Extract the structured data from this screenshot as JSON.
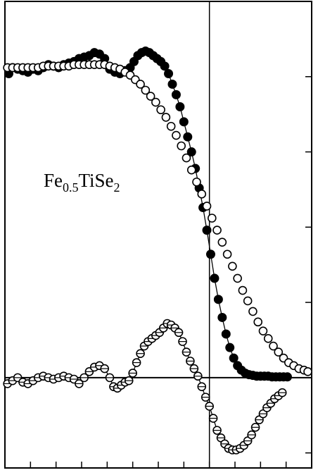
{
  "chart_data": {
    "type": "scatter",
    "annotation": {
      "base": "Fe",
      "sub1": "0.5",
      "mid": "TiSe",
      "sub2": "2"
    },
    "xlim": [
      0,
      12
    ],
    "ylim": [
      -0.6,
      2.5
    ],
    "x_ticks": [
      1,
      2,
      3,
      4,
      5,
      6,
      7,
      8,
      9,
      10,
      11
    ],
    "y_ticks": [
      -0.5,
      0,
      0.5,
      1,
      1.5,
      2
    ],
    "reference_lines": {
      "x": 8,
      "y": 0
    },
    "series": [
      {
        "marker": "filled-circle",
        "connected": true,
        "points": [
          [
            0.15,
            2.02
          ],
          [
            0.3,
            2.06
          ],
          [
            0.5,
            2.05
          ],
          [
            0.7,
            2.04
          ],
          [
            0.9,
            2.03
          ],
          [
            1.1,
            2.05
          ],
          [
            1.3,
            2.04
          ],
          [
            1.5,
            2.06
          ],
          [
            1.7,
            2.08
          ],
          [
            1.9,
            2.07
          ],
          [
            2.1,
            2.06
          ],
          [
            2.3,
            2.08
          ],
          [
            2.5,
            2.09
          ],
          [
            2.7,
            2.1
          ],
          [
            2.9,
            2.12
          ],
          [
            3.1,
            2.13
          ],
          [
            3.3,
            2.14
          ],
          [
            3.5,
            2.16
          ],
          [
            3.7,
            2.15
          ],
          [
            3.9,
            2.12
          ],
          [
            4.1,
            2.05
          ],
          [
            4.3,
            2.03
          ],
          [
            4.5,
            2.02
          ],
          [
            4.7,
            2.04
          ],
          [
            4.9,
            2.06
          ],
          [
            5.05,
            2.1
          ],
          [
            5.2,
            2.14
          ],
          [
            5.35,
            2.16
          ],
          [
            5.5,
            2.17
          ],
          [
            5.65,
            2.16
          ],
          [
            5.8,
            2.14
          ],
          [
            5.95,
            2.12
          ],
          [
            6.1,
            2.1
          ],
          [
            6.25,
            2.07
          ],
          [
            6.4,
            2.02
          ],
          [
            6.55,
            1.95
          ],
          [
            6.7,
            1.88
          ],
          [
            6.85,
            1.8
          ],
          [
            7.0,
            1.7
          ],
          [
            7.15,
            1.6
          ],
          [
            7.3,
            1.5
          ],
          [
            7.45,
            1.39
          ],
          [
            7.6,
            1.26
          ],
          [
            7.75,
            1.13
          ],
          [
            7.9,
            0.98
          ],
          [
            8.05,
            0.82
          ],
          [
            8.2,
            0.66
          ],
          [
            8.35,
            0.52
          ],
          [
            8.5,
            0.4
          ],
          [
            8.65,
            0.29
          ],
          [
            8.8,
            0.2
          ],
          [
            8.95,
            0.13
          ],
          [
            9.1,
            0.08
          ],
          [
            9.25,
            0.05
          ],
          [
            9.4,
            0.03
          ],
          [
            9.55,
            0.02
          ],
          [
            9.7,
            0.015
          ],
          [
            9.85,
            0.01
          ],
          [
            10.0,
            0.01
          ],
          [
            10.15,
            0.01
          ],
          [
            10.3,
            0.01
          ],
          [
            10.45,
            0.005
          ],
          [
            10.6,
            0.005
          ],
          [
            10.75,
            0.005
          ],
          [
            10.9,
            0.005
          ],
          [
            11.05,
            0.005
          ]
        ]
      },
      {
        "marker": "open-circle",
        "connected": false,
        "points": [
          [
            0.1,
            2.06
          ],
          [
            0.3,
            2.06
          ],
          [
            0.5,
            2.06
          ],
          [
            0.7,
            2.06
          ],
          [
            0.9,
            2.06
          ],
          [
            1.1,
            2.06
          ],
          [
            1.3,
            2.06
          ],
          [
            1.5,
            2.07
          ],
          [
            1.7,
            2.07
          ],
          [
            1.9,
            2.07
          ],
          [
            2.1,
            2.07
          ],
          [
            2.3,
            2.07
          ],
          [
            2.5,
            2.07
          ],
          [
            2.7,
            2.08
          ],
          [
            2.9,
            2.08
          ],
          [
            3.1,
            2.08
          ],
          [
            3.3,
            2.08
          ],
          [
            3.5,
            2.08
          ],
          [
            3.7,
            2.08
          ],
          [
            3.9,
            2.08
          ],
          [
            4.1,
            2.07
          ],
          [
            4.3,
            2.06
          ],
          [
            4.5,
            2.05
          ],
          [
            4.7,
            2.03
          ],
          [
            4.9,
            2.01
          ],
          [
            5.1,
            1.98
          ],
          [
            5.3,
            1.95
          ],
          [
            5.5,
            1.91
          ],
          [
            5.7,
            1.87
          ],
          [
            5.9,
            1.83
          ],
          [
            6.1,
            1.78
          ],
          [
            6.3,
            1.73
          ],
          [
            6.5,
            1.67
          ],
          [
            6.7,
            1.61
          ],
          [
            6.9,
            1.54
          ],
          [
            7.1,
            1.46
          ],
          [
            7.3,
            1.38
          ],
          [
            7.5,
            1.3
          ],
          [
            7.7,
            1.22
          ],
          [
            7.9,
            1.14
          ],
          [
            8.1,
            1.06
          ],
          [
            8.3,
            0.98
          ],
          [
            8.5,
            0.9
          ],
          [
            8.7,
            0.82
          ],
          [
            8.9,
            0.74
          ],
          [
            9.1,
            0.66
          ],
          [
            9.3,
            0.58
          ],
          [
            9.5,
            0.51
          ],
          [
            9.7,
            0.44
          ],
          [
            9.9,
            0.37
          ],
          [
            10.1,
            0.31
          ],
          [
            10.3,
            0.26
          ],
          [
            10.5,
            0.21
          ],
          [
            10.7,
            0.17
          ],
          [
            10.9,
            0.13
          ],
          [
            11.1,
            0.1
          ],
          [
            11.3,
            0.08
          ],
          [
            11.5,
            0.06
          ],
          [
            11.7,
            0.05
          ],
          [
            11.85,
            0.04
          ]
        ]
      },
      {
        "marker": "open-circle-crossed",
        "connected": true,
        "points": [
          [
            0.1,
            -0.04
          ],
          [
            0.3,
            -0.02
          ],
          [
            0.5,
            0.0
          ],
          [
            0.7,
            -0.03
          ],
          [
            0.9,
            -0.04
          ],
          [
            1.1,
            -0.02
          ],
          [
            1.3,
            0.0
          ],
          [
            1.5,
            0.01
          ],
          [
            1.7,
            0.0
          ],
          [
            1.9,
            -0.01
          ],
          [
            2.1,
            0.0
          ],
          [
            2.3,
            0.01
          ],
          [
            2.5,
            0.0
          ],
          [
            2.7,
            -0.01
          ],
          [
            2.9,
            -0.04
          ],
          [
            3.1,
            0.0
          ],
          [
            3.3,
            0.04
          ],
          [
            3.5,
            0.07
          ],
          [
            3.7,
            0.08
          ],
          [
            3.9,
            0.06
          ],
          [
            4.1,
            0.0
          ],
          [
            4.25,
            -0.06
          ],
          [
            4.4,
            -0.07
          ],
          [
            4.55,
            -0.05
          ],
          [
            4.7,
            -0.03
          ],
          [
            4.85,
            -0.02
          ],
          [
            5.0,
            0.03
          ],
          [
            5.15,
            0.1
          ],
          [
            5.3,
            0.16
          ],
          [
            5.45,
            0.21
          ],
          [
            5.6,
            0.24
          ],
          [
            5.75,
            0.26
          ],
          [
            5.9,
            0.28
          ],
          [
            6.05,
            0.3
          ],
          [
            6.2,
            0.33
          ],
          [
            6.35,
            0.36
          ],
          [
            6.5,
            0.35
          ],
          [
            6.65,
            0.33
          ],
          [
            6.8,
            0.3
          ],
          [
            6.95,
            0.24
          ],
          [
            7.1,
            0.17
          ],
          [
            7.25,
            0.11
          ],
          [
            7.4,
            0.06
          ],
          [
            7.55,
            0.01
          ],
          [
            7.7,
            -0.06
          ],
          [
            7.85,
            -0.13
          ],
          [
            8.0,
            -0.19
          ],
          [
            8.15,
            -0.27
          ],
          [
            8.3,
            -0.35
          ],
          [
            8.45,
            -0.4
          ],
          [
            8.6,
            -0.44
          ],
          [
            8.75,
            -0.47
          ],
          [
            8.9,
            -0.48
          ],
          [
            9.05,
            -0.48
          ],
          [
            9.2,
            -0.47
          ],
          [
            9.35,
            -0.45
          ],
          [
            9.5,
            -0.42
          ],
          [
            9.65,
            -0.38
          ],
          [
            9.8,
            -0.33
          ],
          [
            9.95,
            -0.28
          ],
          [
            10.1,
            -0.24
          ],
          [
            10.25,
            -0.2
          ],
          [
            10.4,
            -0.17
          ],
          [
            10.55,
            -0.14
          ],
          [
            10.7,
            -0.12
          ],
          [
            10.85,
            -0.1
          ]
        ]
      }
    ]
  }
}
